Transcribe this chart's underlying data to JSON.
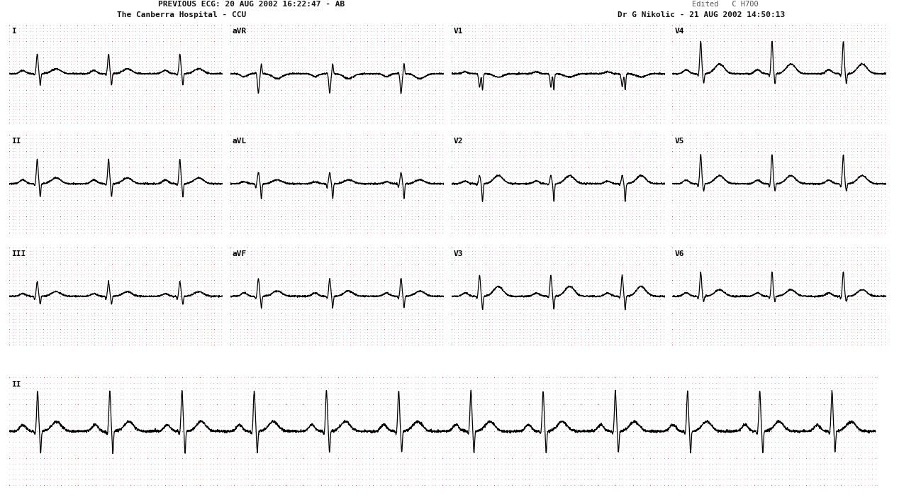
{
  "title_left": "PREVIOUS ECG: 20 AUG 2002 16:22:47 - AB",
  "title_left2": "The Canberra Hospital - CCU",
  "title_right": "Dr G Nikolic - 21 AUG 2002 14:50:13",
  "title_top_right": "Edited   C H700",
  "background_color": "#ffffff",
  "grid_dot_color": "#c8a0a0",
  "grid_major_dot_color": "#b06060",
  "ecg_color": "#000000",
  "fig_width": 12.68,
  "fig_height": 7.05,
  "rows": 4,
  "row_labels": [
    [
      "I",
      "aVR",
      "V1",
      "V4"
    ],
    [
      "II",
      "aVL",
      "V2",
      "V5"
    ],
    [
      "III",
      "aVF",
      "V3",
      "V6"
    ],
    [
      "II",
      "",
      "",
      ""
    ]
  ]
}
